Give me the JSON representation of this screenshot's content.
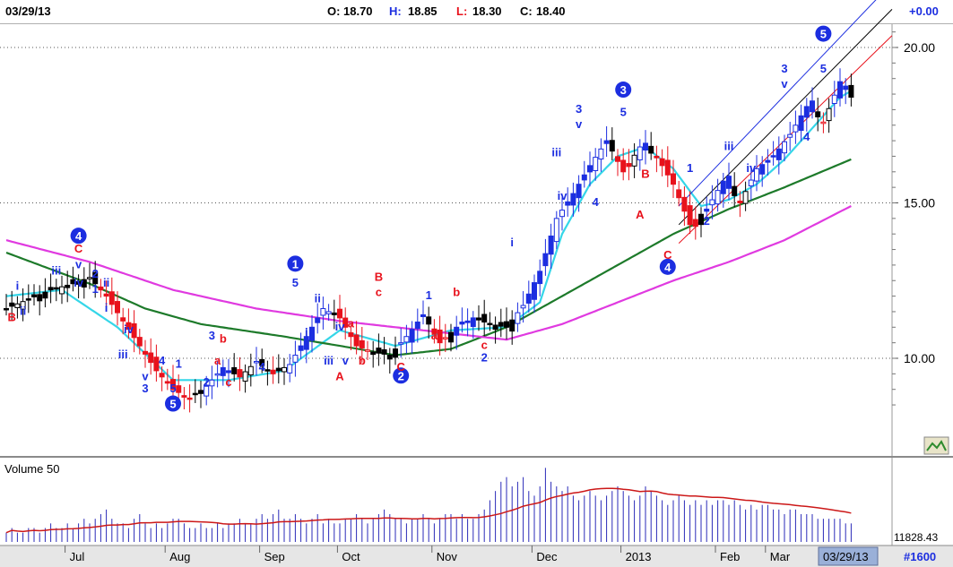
{
  "header": {
    "date": "03/29/13",
    "open_label": "O:",
    "open_value": "18.70",
    "high_label": "H:",
    "high_value": "18.85",
    "low_label": "L:",
    "low_value": "18.30",
    "close_label": "C:",
    "close_value": "18.40",
    "change": "+0.00"
  },
  "volume_title": "Volume 50",
  "volume_readout": "11828.43",
  "date_box": "03/29/13",
  "bar_count": "#1600",
  "colors": {
    "up_candle": "#1c2ee0",
    "down_candle": "#e8121c",
    "neutral_candle": "#000000",
    "ma_fast": "#35d6e8",
    "ma_mid": "#1d7a2a",
    "ma_slow": "#e03ae0",
    "wave_blue": "#1c2ee0",
    "wave_red": "#e8121c",
    "volume_bar": "#2a2ab8",
    "volume_avg": "#cc1818"
  },
  "chart_data": {
    "type": "candlestick",
    "y_axis": {
      "ticks": [
        10.0,
        15.0,
        20.0
      ],
      "tick_labels": [
        "10.00",
        "15.00",
        "20.00"
      ],
      "ylim": [
        8.1,
        21.0
      ],
      "grid": true
    },
    "x_axis": {
      "tick_labels": [
        "Jul",
        "Aug",
        "Sep",
        "Oct",
        "Nov",
        "Dec",
        "2013",
        "Feb",
        "Mar"
      ]
    },
    "close_path": [
      [
        0,
        11.6
      ],
      [
        4,
        11.9
      ],
      [
        8,
        12.2
      ],
      [
        12,
        12.4
      ],
      [
        15,
        12.6
      ],
      [
        18,
        12.0
      ],
      [
        21,
        11.2
      ],
      [
        24,
        10.4
      ],
      [
        27,
        9.6
      ],
      [
        30,
        9.0
      ],
      [
        33,
        8.7
      ],
      [
        36,
        9.1
      ],
      [
        39,
        9.7
      ],
      [
        42,
        9.4
      ],
      [
        45,
        9.9
      ],
      [
        48,
        9.5
      ],
      [
        51,
        9.8
      ],
      [
        54,
        10.7
      ],
      [
        57,
        11.6
      ],
      [
        60,
        11.3
      ],
      [
        63,
        10.4
      ],
      [
        66,
        10.2
      ],
      [
        69,
        10.1
      ],
      [
        72,
        10.7
      ],
      [
        75,
        11.4
      ],
      [
        78,
        10.5
      ],
      [
        81,
        11.0
      ],
      [
        84,
        11.3
      ],
      [
        87,
        11.1
      ],
      [
        90,
        11.0
      ],
      [
        93,
        11.7
      ],
      [
        96,
        12.8
      ],
      [
        99,
        14.5
      ],
      [
        102,
        15.3
      ],
      [
        105,
        16.2
      ],
      [
        108,
        17.0
      ],
      [
        111,
        16.0
      ],
      [
        114,
        16.8
      ],
      [
        117,
        16.5
      ],
      [
        120,
        15.6
      ],
      [
        123,
        14.3
      ],
      [
        126,
        14.8
      ],
      [
        129,
        15.7
      ],
      [
        132,
        15.0
      ],
      [
        135,
        16.1
      ],
      [
        138,
        16.5
      ],
      [
        141,
        17.2
      ],
      [
        144,
        18.1
      ],
      [
        147,
        17.6
      ],
      [
        150,
        18.9
      ],
      [
        152,
        18.4
      ]
    ],
    "moving_averages": [
      {
        "name": "fast",
        "values": [
          [
            0,
            12.0
          ],
          [
            10,
            12.2
          ],
          [
            20,
            11.0
          ],
          [
            30,
            9.3
          ],
          [
            40,
            9.3
          ],
          [
            50,
            9.6
          ],
          [
            60,
            10.9
          ],
          [
            70,
            10.4
          ],
          [
            80,
            10.9
          ],
          [
            90,
            11.0
          ],
          [
            96,
            11.8
          ],
          [
            100,
            14.0
          ],
          [
            105,
            15.6
          ],
          [
            110,
            16.5
          ],
          [
            115,
            16.8
          ],
          [
            120,
            16.1
          ],
          [
            125,
            14.9
          ],
          [
            130,
            15.1
          ],
          [
            135,
            15.6
          ],
          [
            140,
            16.4
          ],
          [
            145,
            17.4
          ],
          [
            150,
            18.4
          ],
          [
            152,
            18.6
          ]
        ]
      },
      {
        "name": "mid",
        "values": [
          [
            0,
            13.4
          ],
          [
            15,
            12.4
          ],
          [
            25,
            11.6
          ],
          [
            35,
            11.1
          ],
          [
            50,
            10.7
          ],
          [
            60,
            10.4
          ],
          [
            70,
            10.1
          ],
          [
            80,
            10.3
          ],
          [
            90,
            11.0
          ],
          [
            100,
            12.0
          ],
          [
            110,
            13.0
          ],
          [
            120,
            14.0
          ],
          [
            130,
            14.8
          ],
          [
            140,
            15.5
          ],
          [
            152,
            16.4
          ]
        ]
      },
      {
        "name": "slow",
        "values": [
          [
            0,
            13.8
          ],
          [
            15,
            13.1
          ],
          [
            30,
            12.2
          ],
          [
            45,
            11.6
          ],
          [
            60,
            11.2
          ],
          [
            75,
            10.9
          ],
          [
            90,
            10.6
          ],
          [
            100,
            11.1
          ],
          [
            110,
            11.8
          ],
          [
            120,
            12.5
          ],
          [
            130,
            13.1
          ],
          [
            140,
            13.8
          ],
          [
            152,
            14.9
          ]
        ]
      }
    ],
    "channel": {
      "upper": [
        [
          121,
          14.9
        ],
        [
          152,
          20.7
        ]
      ],
      "middle": [
        [
          121,
          14.3
        ],
        [
          152,
          19.9
        ]
      ],
      "lower": [
        [
          121,
          13.7
        ],
        [
          152,
          19.1
        ]
      ]
    },
    "elliott_waves": [
      {
        "text": "4",
        "circled": true,
        "color": "blue",
        "x": 13,
        "y": 13.8
      },
      {
        "text": "C",
        "color": "red",
        "x": 13,
        "y": 13.4
      },
      {
        "text": "5",
        "circled": true,
        "color": "blue",
        "x": 30,
        "y": 8.4
      },
      {
        "text": "1",
        "circled": true,
        "color": "blue",
        "x": 52,
        "y": 12.9
      },
      {
        "text": "2",
        "circled": true,
        "color": "blue",
        "x": 71,
        "y": 9.3
      },
      {
        "text": "3",
        "circled": true,
        "color": "blue",
        "x": 111,
        "y": 18.5
      },
      {
        "text": "4",
        "circled": true,
        "color": "blue",
        "x": 119,
        "y": 12.8
      },
      {
        "text": "5",
        "circled": true,
        "color": "blue",
        "x": 147,
        "y": 20.3
      },
      {
        "text": "3",
        "color": "blue",
        "x": 103,
        "y": 17.9
      },
      {
        "text": "v",
        "color": "blue",
        "x": 103,
        "y": 17.4
      },
      {
        "text": "iii",
        "color": "blue",
        "x": 99,
        "y": 16.5
      },
      {
        "text": "iv",
        "color": "blue",
        "x": 100,
        "y": 15.1
      },
      {
        "text": "i",
        "color": "blue",
        "x": 91,
        "y": 13.6
      },
      {
        "text": "4",
        "color": "blue",
        "x": 106,
        "y": 14.9
      },
      {
        "text": "5",
        "color": "blue",
        "x": 111,
        "y": 17.8
      },
      {
        "text": "B",
        "color": "red",
        "x": 115,
        "y": 15.8
      },
      {
        "text": "A",
        "color": "red",
        "x": 114,
        "y": 14.5
      },
      {
        "text": "C",
        "color": "red",
        "x": 119,
        "y": 13.2
      },
      {
        "text": "1",
        "color": "blue",
        "x": 123,
        "y": 16.0
      },
      {
        "text": "2",
        "color": "blue",
        "x": 126,
        "y": 14.3
      },
      {
        "text": "iii",
        "color": "blue",
        "x": 130,
        "y": 16.7
      },
      {
        "text": "iv",
        "color": "blue",
        "x": 134,
        "y": 16.0
      },
      {
        "text": "4",
        "color": "blue",
        "x": 144,
        "y": 17.0
      },
      {
        "text": "3",
        "color": "blue",
        "x": 140,
        "y": 19.2
      },
      {
        "text": "v",
        "color": "blue",
        "x": 140,
        "y": 18.7
      },
      {
        "text": "5",
        "color": "blue",
        "x": 147,
        "y": 19.2
      },
      {
        "text": "B",
        "color": "red",
        "x": 67,
        "y": 12.5
      },
      {
        "text": "c",
        "color": "red",
        "x": 67,
        "y": 12.0
      },
      {
        "text": "a",
        "color": "red",
        "x": 77,
        "y": 10.6
      },
      {
        "text": "b",
        "color": "red",
        "x": 81,
        "y": 12.0
      },
      {
        "text": "1",
        "color": "blue",
        "x": 76,
        "y": 11.9
      },
      {
        "text": "c",
        "color": "red",
        "x": 86,
        "y": 10.3
      },
      {
        "text": "2",
        "color": "blue",
        "x": 86,
        "y": 9.9
      },
      {
        "text": "C",
        "color": "red",
        "x": 71,
        "y": 9.6
      },
      {
        "text": "b",
        "color": "red",
        "x": 64,
        "y": 9.8
      },
      {
        "text": "A",
        "color": "red",
        "x": 60,
        "y": 9.3
      },
      {
        "text": "a",
        "color": "red",
        "x": 62,
        "y": 11.0
      },
      {
        "text": "iii",
        "color": "blue",
        "x": 58,
        "y": 9.8
      },
      {
        "text": "v",
        "color": "blue",
        "x": 61,
        "y": 9.8
      },
      {
        "text": "iv",
        "color": "blue",
        "x": 60,
        "y": 10.9
      },
      {
        "text": "ii",
        "color": "blue",
        "x": 56,
        "y": 11.8
      },
      {
        "text": "i",
        "color": "blue",
        "x": 54,
        "y": 10.7
      },
      {
        "text": "5",
        "color": "blue",
        "x": 52,
        "y": 12.3
      },
      {
        "text": "4",
        "color": "blue",
        "x": 46,
        "y": 9.6
      },
      {
        "text": "2",
        "color": "blue",
        "x": 36,
        "y": 9.1
      },
      {
        "text": "c",
        "color": "red",
        "x": 40,
        "y": 9.1
      },
      {
        "text": "a",
        "color": "red",
        "x": 38,
        "y": 9.8
      },
      {
        "text": "b",
        "color": "red",
        "x": 39,
        "y": 10.5
      },
      {
        "text": "3",
        "color": "blue",
        "x": 37,
        "y": 10.6
      },
      {
        "text": "1",
        "color": "blue",
        "x": 31,
        "y": 9.7
      },
      {
        "text": "4",
        "color": "blue",
        "x": 28,
        "y": 9.8
      },
      {
        "text": "5",
        "color": "blue",
        "x": 30,
        "y": 8.9
      },
      {
        "text": "v",
        "color": "blue",
        "x": 25,
        "y": 9.3
      },
      {
        "text": "3",
        "color": "blue",
        "x": 25,
        "y": 8.9
      },
      {
        "text": "iii",
        "color": "blue",
        "x": 21,
        "y": 10.0
      },
      {
        "text": "iv",
        "color": "blue",
        "x": 22,
        "y": 10.8
      },
      {
        "text": "i",
        "color": "blue",
        "x": 18,
        "y": 11.5
      },
      {
        "text": "ii",
        "color": "blue",
        "x": 18,
        "y": 12.3
      },
      {
        "text": "1",
        "color": "blue",
        "x": 16,
        "y": 12.1
      },
      {
        "text": "2",
        "color": "blue",
        "x": 16,
        "y": 12.6
      },
      {
        "text": "v",
        "color": "blue",
        "x": 13,
        "y": 12.9
      },
      {
        "text": "iv",
        "color": "blue",
        "x": 13,
        "y": 12.3
      },
      {
        "text": "iii",
        "color": "blue",
        "x": 9,
        "y": 12.7
      },
      {
        "text": "i",
        "color": "blue",
        "x": 2,
        "y": 12.2
      },
      {
        "text": "ii",
        "color": "blue",
        "x": 3,
        "y": 11.4
      },
      {
        "text": "B",
        "color": "red",
        "x": 1,
        "y": 11.2
      }
    ],
    "volume": {
      "title": "Volume 50",
      "readout": "11828.43",
      "bars": [
        2,
        3,
        2,
        2,
        3,
        3,
        2,
        3,
        4,
        3,
        3,
        4,
        3,
        4,
        5,
        4,
        5,
        6,
        7,
        5,
        4,
        4,
        3,
        5,
        6,
        4,
        3,
        4,
        3,
        4,
        5,
        5,
        4,
        3,
        3,
        4,
        3,
        3,
        4,
        3,
        4,
        4,
        5,
        4,
        4,
        5,
        6,
        5,
        6,
        7,
        5,
        5,
        6,
        5,
        4,
        5,
        6,
        4,
        5,
        4,
        4,
        5,
        5,
        6,
        5,
        4,
        5,
        6,
        7,
        6,
        5,
        5,
        4,
        5,
        5,
        6,
        5,
        4,
        5,
        6,
        6,
        5,
        6,
        5,
        5,
        6,
        7,
        9,
        11,
        13,
        14,
        12,
        13,
        14,
        11,
        10,
        12,
        16,
        13,
        12,
        11,
        12,
        10,
        9,
        10,
        11,
        10,
        9,
        10,
        11,
        12,
        11,
        10,
        9,
        10,
        12,
        11,
        10,
        9,
        8,
        9,
        10,
        9,
        8,
        9,
        8,
        9,
        8,
        9,
        9,
        8,
        9,
        8,
        7,
        8,
        7,
        8,
        8,
        7,
        7,
        6,
        7,
        7,
        6,
        6,
        6,
        5,
        5,
        5,
        5,
        5,
        4,
        4
      ]
    }
  }
}
